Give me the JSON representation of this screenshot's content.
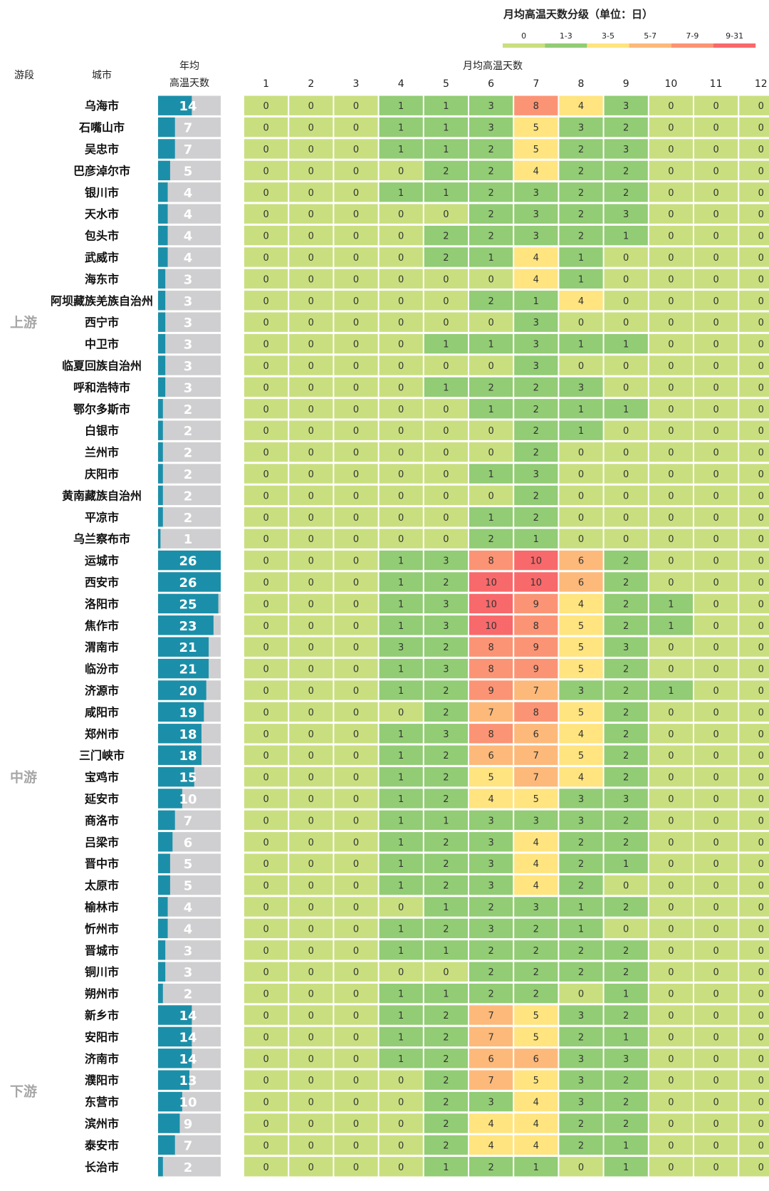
{
  "chart_data": {
    "type": "heatmap",
    "legend": {
      "title": "月均高温天数分级（单位：日）",
      "labels": [
        "0",
        "1-3",
        "3-5",
        "5-7",
        "7-9",
        "9-31"
      ],
      "colors": [
        "#c9df7f",
        "#92cc74",
        "#ffe47f",
        "#fdb97a",
        "#fb9474",
        "#f8696b"
      ]
    },
    "header": {
      "segment": "游段",
      "city": "城市",
      "annual_line1": "年均",
      "annual_line2": "高温天数",
      "monthly": "月均高温天数",
      "months": [
        "1",
        "2",
        "3",
        "4",
        "5",
        "6",
        "7",
        "8",
        "9",
        "10",
        "11",
        "12"
      ]
    },
    "annual_max": 26,
    "bar_color": "#1b8fa9",
    "groups": [
      {
        "name": "上游",
        "rows": [
          {
            "city": "乌海市",
            "annual": 14,
            "months": [
              0,
              0,
              0,
              1,
              1,
              3,
              8,
              4,
              3,
              0,
              0,
              0
            ]
          },
          {
            "city": "石嘴山市",
            "annual": 7,
            "months": [
              0,
              0,
              0,
              1,
              1,
              3,
              5,
              3,
              2,
              0,
              0,
              0
            ]
          },
          {
            "city": "吴忠市",
            "annual": 7,
            "months": [
              0,
              0,
              0,
              1,
              1,
              2,
              5,
              2,
              3,
              0,
              0,
              0
            ]
          },
          {
            "city": "巴彦淖尔市",
            "annual": 5,
            "months": [
              0,
              0,
              0,
              0,
              2,
              2,
              4,
              2,
              2,
              0,
              0,
              0
            ]
          },
          {
            "city": "银川市",
            "annual": 4,
            "months": [
              0,
              0,
              0,
              1,
              1,
              2,
              3,
              2,
              2,
              0,
              0,
              0
            ]
          },
          {
            "city": "天水市",
            "annual": 4,
            "months": [
              0,
              0,
              0,
              0,
              0,
              2,
              3,
              2,
              3,
              0,
              0,
              0
            ]
          },
          {
            "city": "包头市",
            "annual": 4,
            "months": [
              0,
              0,
              0,
              0,
              2,
              2,
              3,
              2,
              1,
              0,
              0,
              0
            ]
          },
          {
            "city": "武威市",
            "annual": 4,
            "months": [
              0,
              0,
              0,
              0,
              2,
              1,
              4,
              1,
              0,
              0,
              0,
              0
            ]
          },
          {
            "city": "海东市",
            "annual": 3,
            "months": [
              0,
              0,
              0,
              0,
              0,
              0,
              4,
              1,
              0,
              0,
              0,
              0
            ]
          },
          {
            "city": "阿坝藏族羌族自治州",
            "annual": 3,
            "months": [
              0,
              0,
              0,
              0,
              0,
              2,
              1,
              4,
              0,
              0,
              0,
              0
            ]
          },
          {
            "city": "西宁市",
            "annual": 3,
            "months": [
              0,
              0,
              0,
              0,
              0,
              0,
              3,
              0,
              0,
              0,
              0,
              0
            ]
          },
          {
            "city": "中卫市",
            "annual": 3,
            "months": [
              0,
              0,
              0,
              0,
              1,
              1,
              3,
              1,
              1,
              0,
              0,
              0
            ]
          },
          {
            "city": "临夏回族自治州",
            "annual": 3,
            "months": [
              0,
              0,
              0,
              0,
              0,
              0,
              3,
              0,
              0,
              0,
              0,
              0
            ]
          },
          {
            "city": "呼和浩特市",
            "annual": 3,
            "months": [
              0,
              0,
              0,
              0,
              1,
              2,
              2,
              3,
              0,
              0,
              0,
              0
            ]
          },
          {
            "city": "鄂尔多斯市",
            "annual": 2,
            "months": [
              0,
              0,
              0,
              0,
              0,
              1,
              2,
              1,
              1,
              0,
              0,
              0
            ]
          },
          {
            "city": "白银市",
            "annual": 2,
            "months": [
              0,
              0,
              0,
              0,
              0,
              0,
              2,
              1,
              0,
              0,
              0,
              0
            ]
          },
          {
            "city": "兰州市",
            "annual": 2,
            "months": [
              0,
              0,
              0,
              0,
              0,
              0,
              2,
              0,
              0,
              0,
              0,
              0
            ]
          },
          {
            "city": "庆阳市",
            "annual": 2,
            "months": [
              0,
              0,
              0,
              0,
              0,
              1,
              3,
              0,
              0,
              0,
              0,
              0
            ]
          },
          {
            "city": "黄南藏族自治州",
            "annual": 2,
            "months": [
              0,
              0,
              0,
              0,
              0,
              0,
              2,
              0,
              0,
              0,
              0,
              0
            ]
          },
          {
            "city": "平凉市",
            "annual": 2,
            "months": [
              0,
              0,
              0,
              0,
              0,
              1,
              2,
              0,
              0,
              0,
              0,
              0
            ]
          },
          {
            "city": "乌兰察布市",
            "annual": 1,
            "months": [
              0,
              0,
              0,
              0,
              0,
              2,
              1,
              0,
              0,
              0,
              0,
              0
            ]
          }
        ]
      },
      {
        "name": "中游",
        "rows": [
          {
            "city": "运城市",
            "annual": 26,
            "months": [
              0,
              0,
              0,
              1,
              3,
              8,
              10,
              6,
              2,
              0,
              0,
              0
            ]
          },
          {
            "city": "西安市",
            "annual": 26,
            "months": [
              0,
              0,
              0,
              1,
              2,
              10,
              10,
              6,
              2,
              0,
              0,
              0
            ]
          },
          {
            "city": "洛阳市",
            "annual": 25,
            "months": [
              0,
              0,
              0,
              1,
              3,
              10,
              9,
              4,
              2,
              1,
              0,
              0
            ]
          },
          {
            "city": "焦作市",
            "annual": 23,
            "months": [
              0,
              0,
              0,
              1,
              3,
              10,
              8,
              5,
              2,
              1,
              0,
              0
            ]
          },
          {
            "city": "渭南市",
            "annual": 21,
            "months": [
              0,
              0,
              0,
              3,
              2,
              8,
              9,
              5,
              3,
              0,
              0,
              0
            ]
          },
          {
            "city": "临汾市",
            "annual": 21,
            "months": [
              0,
              0,
              0,
              1,
              3,
              8,
              9,
              5,
              2,
              0,
              0,
              0
            ]
          },
          {
            "city": "济源市",
            "annual": 20,
            "months": [
              0,
              0,
              0,
              1,
              2,
              9,
              7,
              3,
              2,
              1,
              0,
              0
            ]
          },
          {
            "city": "咸阳市",
            "annual": 19,
            "months": [
              0,
              0,
              0,
              0,
              2,
              7,
              8,
              5,
              2,
              0,
              0,
              0
            ]
          },
          {
            "city": "郑州市",
            "annual": 18,
            "months": [
              0,
              0,
              0,
              1,
              3,
              8,
              6,
              4,
              2,
              0,
              0,
              0
            ]
          },
          {
            "city": "三门峡市",
            "annual": 18,
            "months": [
              0,
              0,
              0,
              1,
              2,
              6,
              7,
              5,
              2,
              0,
              0,
              0
            ]
          },
          {
            "city": "宝鸡市",
            "annual": 15,
            "months": [
              0,
              0,
              0,
              1,
              2,
              5,
              7,
              4,
              2,
              0,
              0,
              0
            ]
          },
          {
            "city": "延安市",
            "annual": 10,
            "months": [
              0,
              0,
              0,
              1,
              2,
              4,
              5,
              3,
              3,
              0,
              0,
              0
            ]
          },
          {
            "city": "商洛市",
            "annual": 7,
            "months": [
              0,
              0,
              0,
              1,
              1,
              3,
              3,
              3,
              2,
              0,
              0,
              0
            ]
          },
          {
            "city": "吕梁市",
            "annual": 6,
            "months": [
              0,
              0,
              0,
              1,
              2,
              3,
              4,
              2,
              2,
              0,
              0,
              0
            ]
          },
          {
            "city": "晋中市",
            "annual": 5,
            "months": [
              0,
              0,
              0,
              1,
              2,
              3,
              4,
              2,
              1,
              0,
              0,
              0
            ]
          },
          {
            "city": "太原市",
            "annual": 5,
            "months": [
              0,
              0,
              0,
              1,
              2,
              3,
              4,
              2,
              0,
              0,
              0,
              0
            ]
          },
          {
            "city": "榆林市",
            "annual": 4,
            "months": [
              0,
              0,
              0,
              0,
              1,
              2,
              3,
              1,
              2,
              0,
              0,
              0
            ]
          },
          {
            "city": "忻州市",
            "annual": 4,
            "months": [
              0,
              0,
              0,
              1,
              2,
              3,
              2,
              1,
              0,
              0,
              0,
              0
            ]
          },
          {
            "city": "晋城市",
            "annual": 3,
            "months": [
              0,
              0,
              0,
              1,
              1,
              2,
              2,
              2,
              2,
              0,
              0,
              0
            ]
          },
          {
            "city": "铜川市",
            "annual": 3,
            "months": [
              0,
              0,
              0,
              0,
              0,
              2,
              2,
              2,
              2,
              0,
              0,
              0
            ]
          },
          {
            "city": "朔州市",
            "annual": 2,
            "months": [
              0,
              0,
              0,
              1,
              1,
              2,
              2,
              0,
              1,
              0,
              0,
              0
            ]
          }
        ]
      },
      {
        "name": "下游",
        "rows": [
          {
            "city": "新乡市",
            "annual": 14,
            "months": [
              0,
              0,
              0,
              1,
              2,
              7,
              5,
              3,
              2,
              0,
              0,
              0
            ]
          },
          {
            "city": "安阳市",
            "annual": 14,
            "months": [
              0,
              0,
              0,
              1,
              2,
              7,
              5,
              2,
              1,
              0,
              0,
              0
            ]
          },
          {
            "city": "济南市",
            "annual": 14,
            "months": [
              0,
              0,
              0,
              1,
              2,
              6,
              6,
              3,
              3,
              0,
              0,
              0
            ]
          },
          {
            "city": "濮阳市",
            "annual": 13,
            "months": [
              0,
              0,
              0,
              0,
              2,
              7,
              5,
              3,
              2,
              0,
              0,
              0
            ]
          },
          {
            "city": "东营市",
            "annual": 10,
            "months": [
              0,
              0,
              0,
              0,
              2,
              3,
              4,
              3,
              2,
              0,
              0,
              0
            ]
          },
          {
            "city": "滨州市",
            "annual": 9,
            "months": [
              0,
              0,
              0,
              0,
              2,
              4,
              4,
              2,
              2,
              0,
              0,
              0
            ]
          },
          {
            "city": "泰安市",
            "annual": 7,
            "months": [
              0,
              0,
              0,
              0,
              2,
              4,
              4,
              2,
              1,
              0,
              0,
              0
            ]
          },
          {
            "city": "长治市",
            "annual": 2,
            "months": [
              0,
              0,
              0,
              0,
              1,
              2,
              1,
              0,
              1,
              0,
              0,
              0
            ]
          }
        ]
      }
    ]
  }
}
